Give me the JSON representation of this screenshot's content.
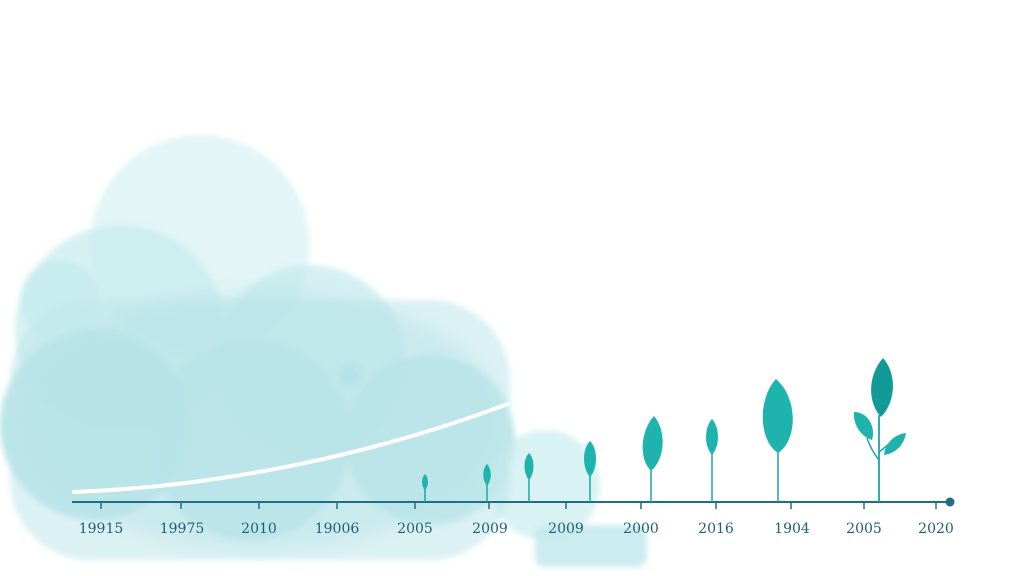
{
  "timeline": {
    "labels": [
      "19915",
      "19975",
      "2010",
      "19006",
      "2005",
      "2009",
      "2009",
      "2000",
      "2016",
      "1904",
      "2005",
      "2020"
    ],
    "colors": {
      "axis": "#1f6e86",
      "sprout": "#1fb3ad",
      "sprout_dark": "#129a98",
      "wash": "#bfe8ea",
      "curve": "#ffffff"
    }
  }
}
